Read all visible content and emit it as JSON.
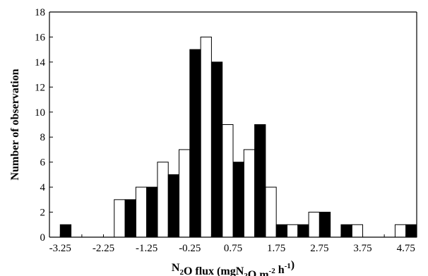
{
  "chart_data": {
    "type": "bar",
    "xlabel": {
      "parts": [
        {
          "text": "N",
          "shift": "none"
        },
        {
          "text": "2",
          "shift": "sub"
        },
        {
          "text": "O flux (mgN",
          "shift": "none"
        },
        {
          "text": "2",
          "shift": "sub"
        },
        {
          "text": "O m",
          "shift": "none"
        },
        {
          "text": "-2",
          "shift": "super"
        },
        {
          "text": " h",
          "shift": "none"
        },
        {
          "text": "-1",
          "shift": "super"
        },
        {
          "text": ")",
          "shift": "none"
        }
      ]
    },
    "ylabel": "Number of observation",
    "ylim": [
      0,
      18
    ],
    "xlim": [
      -3.5,
      5.0
    ],
    "y_ticks": [
      "0",
      "2",
      "4",
      "6",
      "8",
      "10",
      "12",
      "14",
      "16",
      "18"
    ],
    "x_ticks": [
      "-3.25",
      "-2.25",
      "-1.25",
      "-0.25",
      "0.75",
      "1.75",
      "2.75",
      "3.75",
      "4.75"
    ],
    "bin_centers": [
      -3.25,
      -2.75,
      -2.25,
      -1.75,
      -1.25,
      -0.75,
      -0.25,
      0.25,
      0.75,
      1.25,
      1.75,
      2.25,
      2.75,
      3.25,
      3.75,
      4.25,
      4.75
    ],
    "series": [
      {
        "fill": "#ffffff",
        "stroke": "#000000",
        "values": [
          0,
          0,
          0,
          3,
          4,
          6,
          7,
          16,
          9,
          7,
          4,
          1,
          2,
          0,
          1,
          0,
          1
        ]
      },
      {
        "fill": "#000000",
        "stroke": "#000000",
        "values": [
          1,
          0,
          0,
          3,
          4,
          5,
          15,
          14,
          6,
          9,
          1,
          1,
          2,
          1,
          0,
          0,
          1
        ]
      }
    ],
    "grid": false
  }
}
